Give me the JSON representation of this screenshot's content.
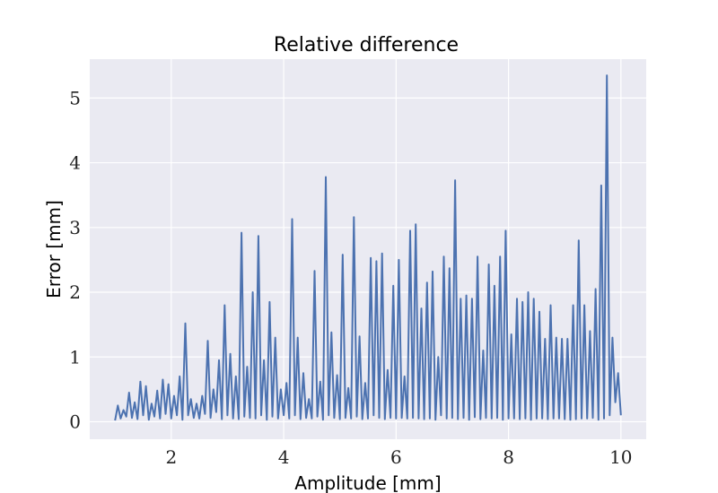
{
  "chart_data": {
    "type": "line",
    "title": "Relative difference",
    "xlabel": "Amplitude [mm]",
    "ylabel": "Error [mm]",
    "xlim": [
      0.55,
      10.45
    ],
    "ylim": [
      -0.27,
      5.6
    ],
    "xticks": [
      2,
      4,
      6,
      8,
      10
    ],
    "yticks": [
      0,
      1,
      2,
      3,
      4,
      5
    ],
    "grid": true,
    "colors": {
      "background": "#eaeaf2",
      "grid": "#ffffff",
      "line": "#4c72b0"
    },
    "series": [
      {
        "x": [
          1.0,
          1.05,
          1.1,
          1.15,
          1.2,
          1.25,
          1.3,
          1.35,
          1.4,
          1.45,
          1.5,
          1.55,
          1.6,
          1.65,
          1.7,
          1.75,
          1.8,
          1.85,
          1.9,
          1.95,
          2.0,
          2.05,
          2.1,
          2.15,
          2.2,
          2.25,
          2.3,
          2.35,
          2.4,
          2.45,
          2.5,
          2.55,
          2.6,
          2.65,
          2.7,
          2.75,
          2.8,
          2.85,
          2.9,
          2.95,
          3.0,
          3.05,
          3.1,
          3.15,
          3.2,
          3.25,
          3.3,
          3.35,
          3.4,
          3.45,
          3.5,
          3.55,
          3.6,
          3.65,
          3.7,
          3.75,
          3.8,
          3.85,
          3.9,
          3.95,
          4.0,
          4.05,
          4.1,
          4.15,
          4.2,
          4.25,
          4.3,
          4.35,
          4.4,
          4.45,
          4.5,
          4.55,
          4.6,
          4.65,
          4.7,
          4.75,
          4.8,
          4.85,
          4.9,
          4.95,
          5.0,
          5.05,
          5.1,
          5.15,
          5.2,
          5.25,
          5.3,
          5.35,
          5.4,
          5.45,
          5.5,
          5.55,
          5.6,
          5.65,
          5.7,
          5.75,
          5.8,
          5.85,
          5.9,
          5.95,
          6.0,
          6.05,
          6.1,
          6.15,
          6.2,
          6.25,
          6.3,
          6.35,
          6.4,
          6.45,
          6.5,
          6.55,
          6.6,
          6.65,
          6.7,
          6.75,
          6.8,
          6.85,
          6.9,
          6.95,
          7.0,
          7.05,
          7.1,
          7.15,
          7.2,
          7.25,
          7.3,
          7.35,
          7.4,
          7.45,
          7.5,
          7.55,
          7.6,
          7.65,
          7.7,
          7.75,
          7.8,
          7.85,
          7.9,
          7.95,
          8.0,
          8.05,
          8.1,
          8.15,
          8.2,
          8.25,
          8.3,
          8.35,
          8.4,
          8.45,
          8.5,
          8.55,
          8.6,
          8.65,
          8.7,
          8.75,
          8.8,
          8.85,
          8.9,
          8.95,
          9.0,
          9.05,
          9.1,
          9.15,
          9.2,
          9.25,
          9.3,
          9.35,
          9.4,
          9.45,
          9.5,
          9.55,
          9.6,
          9.65,
          9.7,
          9.75,
          9.8,
          9.85,
          9.9,
          9.95,
          10.0
        ],
        "y": [
          0.02,
          0.25,
          0.05,
          0.18,
          0.08,
          0.45,
          0.06,
          0.3,
          0.04,
          0.62,
          0.1,
          0.55,
          0.03,
          0.28,
          0.08,
          0.48,
          0.05,
          0.65,
          0.12,
          0.58,
          0.05,
          0.4,
          0.1,
          0.7,
          0.03,
          1.52,
          0.1,
          0.35,
          0.06,
          0.28,
          0.05,
          0.4,
          0.12,
          1.25,
          0.06,
          0.5,
          0.15,
          0.95,
          0.04,
          1.8,
          0.1,
          1.05,
          0.05,
          0.7,
          0.04,
          2.92,
          0.08,
          0.85,
          0.06,
          2.0,
          0.05,
          2.87,
          0.1,
          0.95,
          0.03,
          1.85,
          0.08,
          1.3,
          0.05,
          0.5,
          0.1,
          0.6,
          0.05,
          3.13,
          0.1,
          1.3,
          0.04,
          0.75,
          0.06,
          0.35,
          0.05,
          2.33,
          0.08,
          0.62,
          0.03,
          3.78,
          0.1,
          1.38,
          0.06,
          0.72,
          0.04,
          2.58,
          0.06,
          0.52,
          0.05,
          3.16,
          0.08,
          1.32,
          0.04,
          0.6,
          0.05,
          2.53,
          0.1,
          2.48,
          0.06,
          2.6,
          0.04,
          0.8,
          0.06,
          2.1,
          0.05,
          2.5,
          0.06,
          0.7,
          0.05,
          2.95,
          0.06,
          3.05,
          0.05,
          1.75,
          0.04,
          2.15,
          0.05,
          2.32,
          0.03,
          1.0,
          0.1,
          2.55,
          0.05,
          2.37,
          0.06,
          3.73,
          0.04,
          1.9,
          0.06,
          1.95,
          0.03,
          1.9,
          0.07,
          2.55,
          0.04,
          1.1,
          0.06,
          2.43,
          0.05,
          2.1,
          0.06,
          2.55,
          0.03,
          2.95,
          0.05,
          1.35,
          0.05,
          1.9,
          0.04,
          1.85,
          0.05,
          2.0,
          0.03,
          1.9,
          0.05,
          1.7,
          0.05,
          1.28,
          0.04,
          1.8,
          0.05,
          1.3,
          0.05,
          1.28,
          0.04,
          1.28,
          0.03,
          1.8,
          0.04,
          2.8,
          0.05,
          1.8,
          0.05,
          1.4,
          0.06,
          2.05,
          0.03,
          3.65,
          0.05,
          5.35,
          0.1,
          1.3,
          0.3,
          0.75,
          0.1
        ]
      }
    ]
  }
}
